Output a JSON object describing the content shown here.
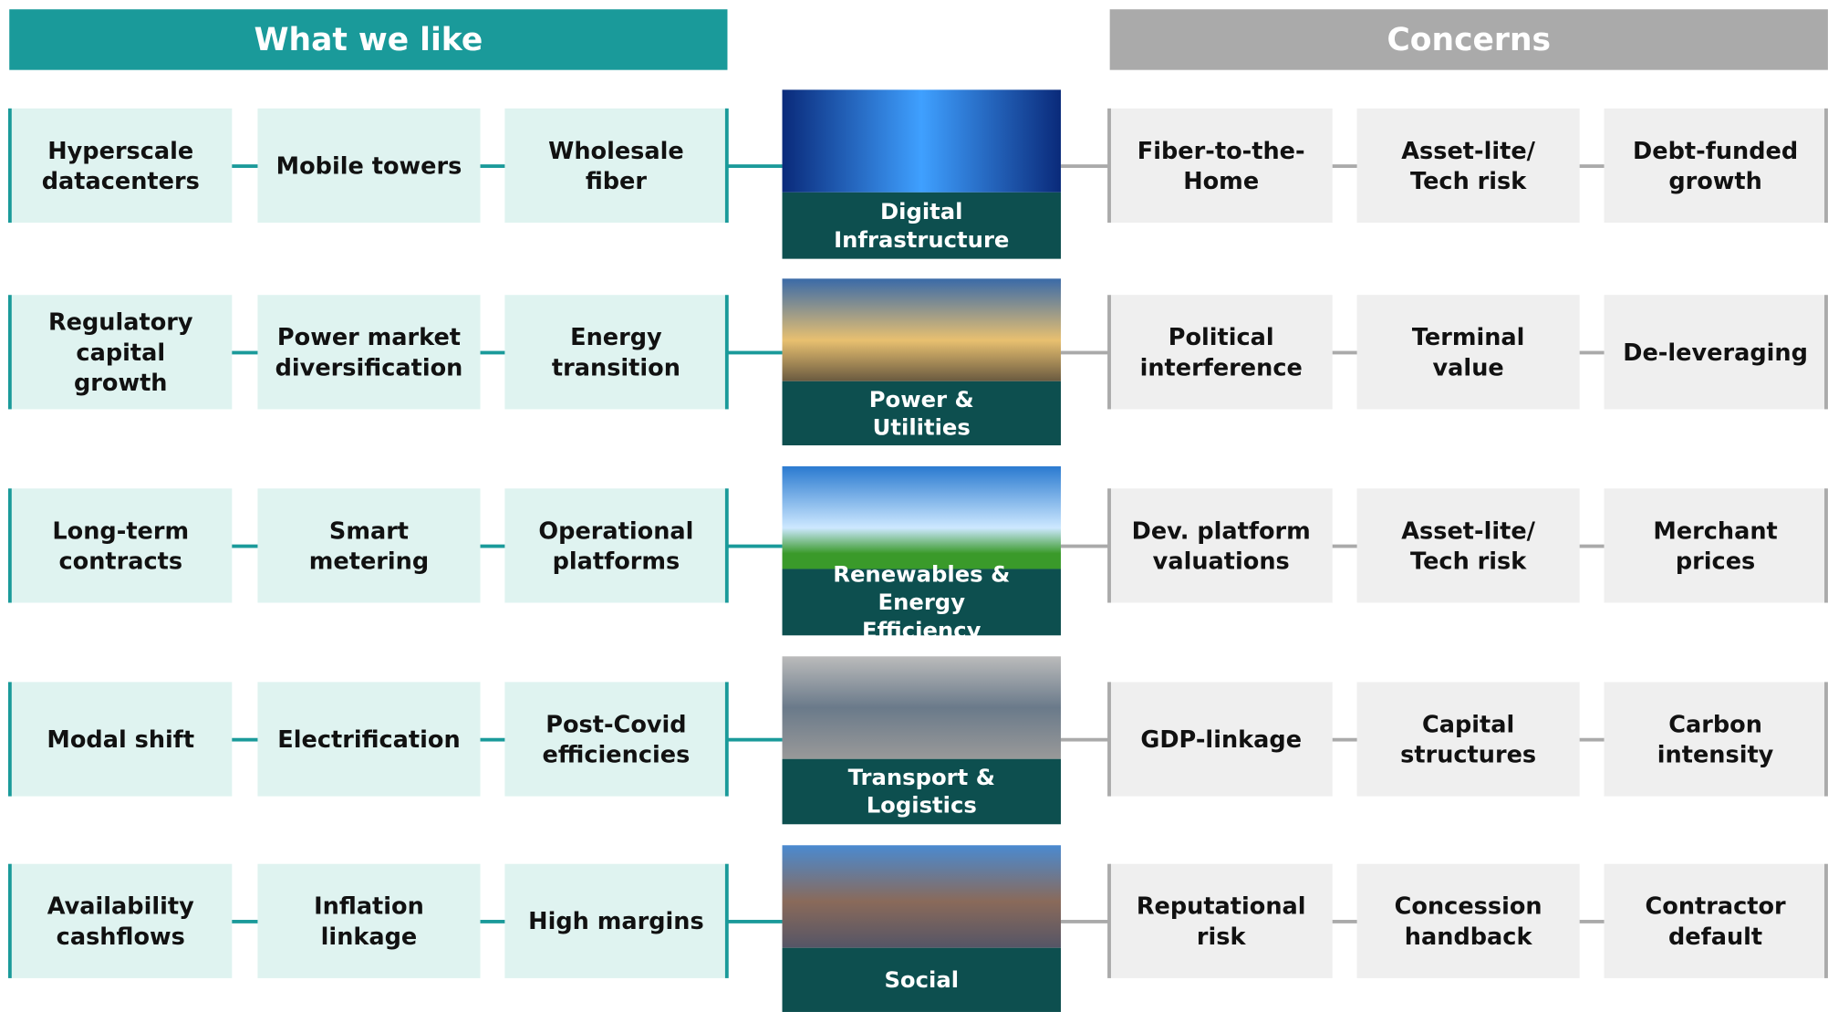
{
  "header": {
    "likes_title": "What we like",
    "concerns_title": "Concerns"
  },
  "rows": [
    {
      "sector": "Digital Infrastructure",
      "likes": [
        "Hyperscale datacenters",
        "Mobile towers",
        "Wholesale fiber"
      ],
      "concerns": [
        "Fiber-to-the-Home",
        "Asset-lite/ Tech risk",
        "Debt-funded growth"
      ]
    },
    {
      "sector": "Power & Utilities",
      "likes": [
        "Regulatory capital growth",
        "Power market diversification",
        "Energy transition"
      ],
      "concerns": [
        "Political interference",
        "Terminal value",
        "De-leveraging"
      ]
    },
    {
      "sector": "Renewables & Energy Efficiency",
      "likes": [
        "Long-term contracts",
        "Smart metering",
        "Operational platforms"
      ],
      "concerns": [
        "Dev. platform valuations",
        "Asset-lite/ Tech risk",
        "Merchant prices"
      ]
    },
    {
      "sector": "Transport & Logistics",
      "likes": [
        "Modal shift",
        "Electrification",
        "Post-Covid efficiencies"
      ],
      "concerns": [
        "GDP-linkage",
        "Capital structures",
        "Carbon intensity"
      ]
    },
    {
      "sector": "Social",
      "likes": [
        "Availability cashflows",
        "Inflation linkage",
        "High margins"
      ],
      "concerns": [
        "Reputational risk",
        "Concession handback",
        "Contractor default"
      ]
    }
  ]
}
